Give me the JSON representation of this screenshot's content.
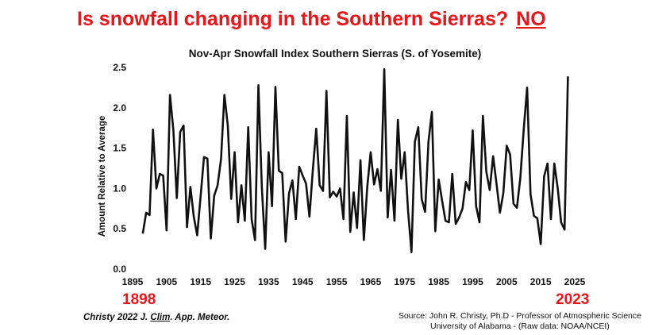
{
  "headline": {
    "question": "Is snowfall changing in the Southern Sierras?",
    "answer": "NO"
  },
  "colors": {
    "headline": "#e8151b",
    "line": "#111111"
  },
  "chart_data": {
    "type": "line",
    "title": "Nov-Apr Snowfall Index Southern Sierras (S. of Yosemite)",
    "xlabel": "",
    "ylabel": "Amount Relative to Average",
    "xlim": [
      1895,
      2025
    ],
    "ylim": [
      0.0,
      2.5
    ],
    "x_ticks": [
      "1895",
      "1905",
      "1915",
      "1925",
      "1935",
      "1945",
      "1955",
      "1965",
      "1975",
      "1985",
      "1995",
      "2005",
      "2015",
      "2025"
    ],
    "y_ticks": [
      "0.0",
      "0.5",
      "1.0",
      "1.5",
      "2.0",
      "2.5"
    ],
    "grid": false,
    "x_start": 1898,
    "x_step": 1,
    "series": [
      {
        "values": [
          0.44,
          0.7,
          0.67,
          1.73,
          1.0,
          1.18,
          1.16,
          0.48,
          2.16,
          1.72,
          0.88,
          1.7,
          1.78,
          0.52,
          1.02,
          0.65,
          0.42,
          0.9,
          1.39,
          1.37,
          0.38,
          0.91,
          1.04,
          1.36,
          2.16,
          1.78,
          0.87,
          1.45,
          0.58,
          1.04,
          0.6,
          1.76,
          0.62,
          0.36,
          2.28,
          1.02,
          0.25,
          1.45,
          0.78,
          2.26,
          1.22,
          1.19,
          0.34,
          0.94,
          1.1,
          0.62,
          1.27,
          1.16,
          1.06,
          0.65,
          1.23,
          1.74,
          1.04,
          0.97,
          2.21,
          0.89,
          0.96,
          0.9,
          1.0,
          0.62,
          1.9,
          0.46,
          0.95,
          0.51,
          1.35,
          0.36,
          1.02,
          1.45,
          1.05,
          1.24,
          0.97,
          2.48,
          0.64,
          1.23,
          0.6,
          1.85,
          1.12,
          1.45,
          0.72,
          0.21,
          1.58,
          1.76,
          0.87,
          0.71,
          1.58,
          1.95,
          0.47,
          1.11,
          0.85,
          0.6,
          0.58,
          1.18,
          0.56,
          0.64,
          0.75,
          1.08,
          0.98,
          1.72,
          0.78,
          0.58,
          1.9,
          1.21,
          0.98,
          1.4,
          1.06,
          0.7,
          0.94,
          1.53,
          1.42,
          0.81,
          0.76,
          1.13,
          1.73,
          2.25,
          0.93,
          0.66,
          0.63,
          0.31,
          1.15,
          1.31,
          0.62,
          1.31,
          1.0,
          0.58,
          0.49,
          2.39
        ]
      }
    ]
  },
  "year_labels": {
    "start": "1898",
    "end": "2023"
  },
  "citation": {
    "prefix": "Christy 2022 J. ",
    "underlined": "Clim",
    "suffix": ". App. Meteor."
  },
  "source": {
    "line1": "Source: John R. Christy, Ph.D - Professor of Atmospheric Science",
    "line2": "University of Alabama - (Raw data: NOAA/NCEI)"
  }
}
